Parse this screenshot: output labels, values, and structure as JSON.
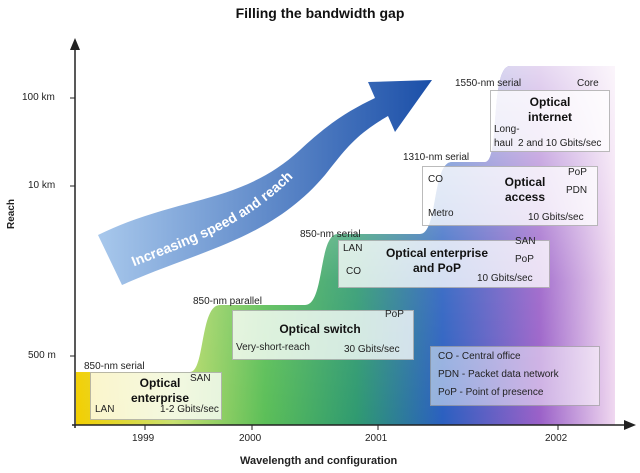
{
  "title": "Filling the bandwidth gap",
  "y_axis": {
    "label": "Reach",
    "ticks": [
      "100 km",
      "10 km",
      "500 m"
    ]
  },
  "x_axis": {
    "label": "Wavelength and configuration",
    "ticks": [
      "1999",
      "2000",
      "2001",
      "2002"
    ]
  },
  "arrow_label": "Increasing speed and reach",
  "steps": [
    {
      "technology": "850-nm serial",
      "title_lines": [
        "Optical",
        "enterprise"
      ],
      "tags": [
        "SAN",
        "LAN"
      ],
      "rate": "1-2 Gbits/sec"
    },
    {
      "technology": "850-nm parallel",
      "title_lines": [
        "Optical switch"
      ],
      "tags": [
        "PoP",
        "Very-short-reach"
      ],
      "rate": "30 Gbits/sec"
    },
    {
      "technology": "850-nm serial",
      "title_lines": [
        "Optical enterprise",
        "and PoP"
      ],
      "tags": [
        "LAN",
        "CO",
        "SAN",
        "PoP"
      ],
      "rate": "10 Gbits/sec"
    },
    {
      "technology": "1310-nm serial",
      "title_lines": [
        "Optical",
        "access"
      ],
      "tags": [
        "CO",
        "Metro",
        "PoP",
        "PDN"
      ],
      "rate": "10 Gbits/sec"
    },
    {
      "technology": "1550-nm serial",
      "title_lines": [
        "Optical",
        "internet"
      ],
      "tags": [
        "Core",
        "Long-",
        "haul"
      ],
      "rate": "2 and 10 Gbits/sec"
    }
  ],
  "legend": [
    "CO - Central office",
    "PDN - Packet data network",
    "PoP - Point of presence"
  ]
}
